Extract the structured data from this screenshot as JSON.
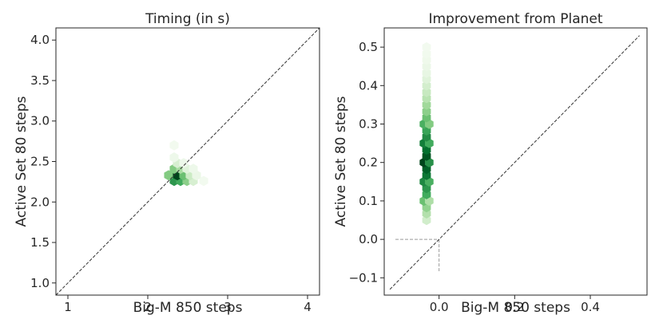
{
  "chart_data": [
    {
      "type": "hexbin",
      "title": "Timing (in s)",
      "xlabel": "Big-M 850 steps",
      "ylabel": "Active Set 80 steps",
      "xlim": [
        0.85,
        4.15
      ],
      "ylim": [
        0.85,
        4.15
      ],
      "xticks": [
        1,
        2,
        3,
        4
      ],
      "yticks": [
        1.0,
        1.5,
        2.0,
        2.5,
        3.0,
        3.5,
        4.0
      ],
      "xtick_labels": [
        "1",
        "2",
        "3",
        "4"
      ],
      "ytick_labels": [
        "1.0",
        "1.5",
        "2.0",
        "2.5",
        "3.0",
        "3.5",
        "4.0"
      ],
      "grid": false,
      "colormap": "Greens",
      "reference_line": {
        "style": "dashed",
        "color": "#333333",
        "from": [
          0.85,
          0.85
        ],
        "to": [
          4.15,
          4.15
        ]
      },
      "hexbins": [
        {
          "x": 2.33,
          "y": 2.26,
          "density": 0.8
        },
        {
          "x": 2.41,
          "y": 2.26,
          "density": 0.72
        },
        {
          "x": 2.49,
          "y": 2.26,
          "density": 0.52
        },
        {
          "x": 2.57,
          "y": 2.26,
          "density": 0.22
        },
        {
          "x": 2.7,
          "y": 2.26,
          "density": 0.04
        },
        {
          "x": 2.26,
          "y": 2.33,
          "density": 0.55
        },
        {
          "x": 2.37,
          "y": 2.33,
          "density": 1.0
        },
        {
          "x": 2.45,
          "y": 2.33,
          "density": 0.62
        },
        {
          "x": 2.53,
          "y": 2.33,
          "density": 0.28
        },
        {
          "x": 2.61,
          "y": 2.33,
          "density": 0.1
        },
        {
          "x": 2.33,
          "y": 2.41,
          "density": 0.55
        },
        {
          "x": 2.41,
          "y": 2.41,
          "density": 0.42
        },
        {
          "x": 2.49,
          "y": 2.41,
          "density": 0.18
        },
        {
          "x": 2.57,
          "y": 2.41,
          "density": 0.08
        },
        {
          "x": 2.37,
          "y": 2.48,
          "density": 0.22
        },
        {
          "x": 2.45,
          "y": 2.48,
          "density": 0.08
        },
        {
          "x": 2.33,
          "y": 2.55,
          "density": 0.08
        },
        {
          "x": 2.33,
          "y": 2.7,
          "density": 0.04
        }
      ]
    },
    {
      "type": "hexbin",
      "title": "Improvement from Planet",
      "xlabel": "Big-M 850 steps",
      "ylabel": "Active Set 80 steps",
      "xlim": [
        -0.145,
        0.55
      ],
      "ylim": [
        -0.145,
        0.55
      ],
      "xticks": [
        0.0,
        0.2,
        0.4
      ],
      "yticks": [
        -0.1,
        0.0,
        0.1,
        0.2,
        0.3,
        0.4,
        0.5
      ],
      "xtick_labels": [
        "0.0",
        "0.2",
        "0.4"
      ],
      "ytick_labels": [
        "−0.1",
        "0.0",
        "0.1",
        "0.2",
        "0.3",
        "0.4",
        "0.5"
      ],
      "grid": false,
      "colormap": "Greens",
      "reference_line": {
        "style": "dashed",
        "color": "#333333",
        "from": [
          -0.13,
          -0.13
        ],
        "to": [
          0.53,
          0.53
        ]
      },
      "zero_guides": {
        "style": "dashed",
        "color": "#9a9a9a"
      },
      "hexbins": [
        {
          "x": -0.033,
          "y": 0.05,
          "density": 0.25
        },
        {
          "x": -0.033,
          "y": 0.067,
          "density": 0.38
        },
        {
          "x": -0.033,
          "y": 0.083,
          "density": 0.5
        },
        {
          "x": -0.04,
          "y": 0.1,
          "density": 0.62
        },
        {
          "x": -0.026,
          "y": 0.1,
          "density": 0.4
        },
        {
          "x": -0.033,
          "y": 0.117,
          "density": 0.72
        },
        {
          "x": -0.033,
          "y": 0.133,
          "density": 0.8
        },
        {
          "x": -0.04,
          "y": 0.15,
          "density": 0.85
        },
        {
          "x": -0.026,
          "y": 0.15,
          "density": 0.7
        },
        {
          "x": -0.033,
          "y": 0.167,
          "density": 0.9
        },
        {
          "x": -0.033,
          "y": 0.183,
          "density": 0.95
        },
        {
          "x": -0.04,
          "y": 0.2,
          "density": 1.0
        },
        {
          "x": -0.026,
          "y": 0.2,
          "density": 0.82
        },
        {
          "x": -0.033,
          "y": 0.217,
          "density": 0.97
        },
        {
          "x": -0.033,
          "y": 0.233,
          "density": 0.92
        },
        {
          "x": -0.04,
          "y": 0.25,
          "density": 0.88
        },
        {
          "x": -0.026,
          "y": 0.25,
          "density": 0.72
        },
        {
          "x": -0.033,
          "y": 0.267,
          "density": 0.84
        },
        {
          "x": -0.033,
          "y": 0.283,
          "density": 0.75
        },
        {
          "x": -0.04,
          "y": 0.3,
          "density": 0.7
        },
        {
          "x": -0.026,
          "y": 0.3,
          "density": 0.55
        },
        {
          "x": -0.033,
          "y": 0.317,
          "density": 0.62
        },
        {
          "x": -0.033,
          "y": 0.333,
          "density": 0.52
        },
        {
          "x": -0.033,
          "y": 0.35,
          "density": 0.45
        },
        {
          "x": -0.033,
          "y": 0.367,
          "density": 0.36
        },
        {
          "x": -0.033,
          "y": 0.383,
          "density": 0.3
        },
        {
          "x": -0.033,
          "y": 0.4,
          "density": 0.24
        },
        {
          "x": -0.033,
          "y": 0.417,
          "density": 0.18
        },
        {
          "x": -0.033,
          "y": 0.433,
          "density": 0.13
        },
        {
          "x": -0.033,
          "y": 0.45,
          "density": 0.1
        },
        {
          "x": -0.033,
          "y": 0.467,
          "density": 0.07
        },
        {
          "x": -0.033,
          "y": 0.483,
          "density": 0.05
        },
        {
          "x": -0.033,
          "y": 0.5,
          "density": 0.04
        }
      ]
    }
  ]
}
